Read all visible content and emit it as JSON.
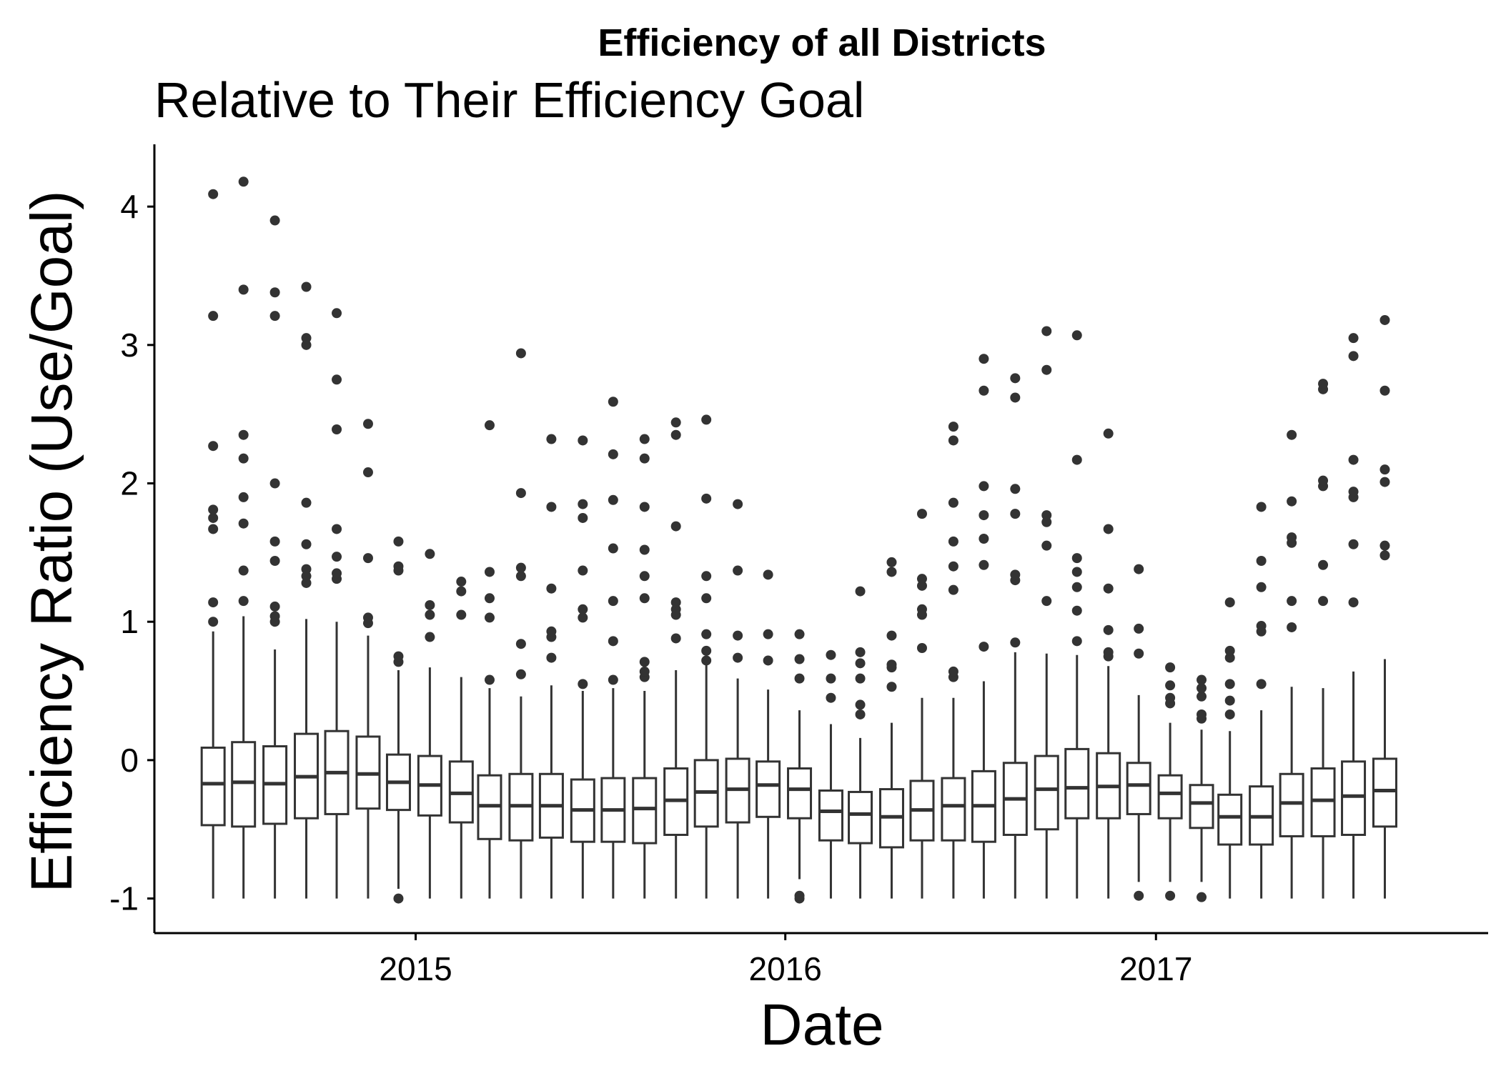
{
  "chart_data": {
    "type": "boxplot",
    "title": "Efficiency of all Districts",
    "subtitle": "Relative to Their Efficiency Goal",
    "xlabel": "Date",
    "ylabel": "Efficiency Ratio (Use/Goal)",
    "ylim": [
      -1.25,
      4.45
    ],
    "xlim": [
      "2014-04-18",
      "2017-11-25"
    ],
    "yticks": [
      -1,
      0,
      1,
      2,
      3,
      4
    ],
    "xticks": [
      {
        "date": "2015-01-01",
        "label": "2015"
      },
      {
        "date": "2016-01-01",
        "label": "2016"
      },
      {
        "date": "2017-01-01",
        "label": "2017"
      }
    ],
    "grid": false,
    "legend": "none",
    "colors": {
      "box_stroke": "#333333",
      "box_fill": "#ffffff",
      "outlier": "#333333",
      "axis": "#000000"
    },
    "boxes": [
      {
        "date": "2014-06-15",
        "min": -1.0,
        "q1": -0.47,
        "median": -0.17,
        "q3": 0.09,
        "max": 0.93,
        "outliers": [
          1.0,
          1.14,
          1.67,
          1.75,
          1.81,
          2.27,
          3.21,
          4.09
        ]
      },
      {
        "date": "2014-07-15",
        "min": -1.0,
        "q1": -0.48,
        "median": -0.16,
        "q3": 0.13,
        "max": 1.04,
        "outliers": [
          1.15,
          1.37,
          1.71,
          1.9,
          2.18,
          2.35,
          3.4,
          4.18
        ]
      },
      {
        "date": "2014-08-15",
        "min": -1.0,
        "q1": -0.46,
        "median": -0.17,
        "q3": 0.1,
        "max": 0.8,
        "outliers": [
          1.0,
          1.04,
          1.11,
          1.44,
          1.58,
          2.0,
          3.21,
          3.38,
          3.9
        ]
      },
      {
        "date": "2014-09-15",
        "min": -1.0,
        "q1": -0.42,
        "median": -0.12,
        "q3": 0.19,
        "max": 1.02,
        "outliers": [
          1.28,
          1.33,
          1.38,
          1.56,
          1.86,
          3.0,
          3.05,
          3.42
        ]
      },
      {
        "date": "2014-10-15",
        "min": -1.0,
        "q1": -0.39,
        "median": -0.09,
        "q3": 0.21,
        "max": 1.0,
        "outliers": [
          1.31,
          1.35,
          1.47,
          1.67,
          2.39,
          2.75,
          3.23
        ]
      },
      {
        "date": "2014-11-15",
        "min": -1.0,
        "q1": -0.35,
        "median": -0.1,
        "q3": 0.17,
        "max": 0.9,
        "outliers": [
          0.99,
          1.03,
          1.46,
          2.08,
          2.43
        ]
      },
      {
        "date": "2014-12-15",
        "min": -0.93,
        "q1": -0.36,
        "median": -0.16,
        "q3": 0.04,
        "max": 0.65,
        "outliers": [
          -1.0,
          0.71,
          0.75,
          1.37,
          1.4,
          1.58
        ]
      },
      {
        "date": "2015-01-15",
        "min": -1.0,
        "q1": -0.4,
        "median": -0.18,
        "q3": 0.03,
        "max": 0.67,
        "outliers": [
          0.89,
          1.05,
          1.12,
          1.49
        ]
      },
      {
        "date": "2015-02-15",
        "min": -1.0,
        "q1": -0.45,
        "median": -0.24,
        "q3": -0.01,
        "max": 0.6,
        "outliers": [
          1.05,
          1.22,
          1.29
        ]
      },
      {
        "date": "2015-03-15",
        "min": -1.0,
        "q1": -0.57,
        "median": -0.33,
        "q3": -0.11,
        "max": 0.52,
        "outliers": [
          0.58,
          1.03,
          1.17,
          1.36,
          2.42
        ]
      },
      {
        "date": "2015-04-15",
        "min": -1.0,
        "q1": -0.58,
        "median": -0.33,
        "q3": -0.1,
        "max": 0.46,
        "outliers": [
          0.62,
          0.84,
          1.33,
          1.39,
          1.93,
          2.94
        ]
      },
      {
        "date": "2015-05-15",
        "min": -1.0,
        "q1": -0.56,
        "median": -0.33,
        "q3": -0.1,
        "max": 0.54,
        "outliers": [
          0.74,
          0.89,
          0.93,
          1.24,
          1.83,
          2.32
        ]
      },
      {
        "date": "2015-06-15",
        "min": -1.0,
        "q1": -0.59,
        "median": -0.36,
        "q3": -0.14,
        "max": 0.5,
        "outliers": [
          0.55,
          1.03,
          1.09,
          1.37,
          1.75,
          1.85,
          2.31
        ]
      },
      {
        "date": "2015-07-15",
        "min": -1.0,
        "q1": -0.59,
        "median": -0.36,
        "q3": -0.13,
        "max": 0.52,
        "outliers": [
          0.58,
          0.86,
          1.15,
          1.53,
          1.88,
          2.21,
          2.59
        ]
      },
      {
        "date": "2015-08-15",
        "min": -1.0,
        "q1": -0.6,
        "median": -0.35,
        "q3": -0.13,
        "max": 0.5,
        "outliers": [
          0.6,
          0.64,
          0.71,
          1.17,
          1.33,
          1.52,
          1.83,
          2.18,
          2.32
        ]
      },
      {
        "date": "2015-09-15",
        "min": -1.0,
        "q1": -0.54,
        "median": -0.29,
        "q3": -0.06,
        "max": 0.65,
        "outliers": [
          0.88,
          1.05,
          1.09,
          1.14,
          1.69,
          2.35,
          2.44
        ]
      },
      {
        "date": "2015-10-15",
        "min": -1.0,
        "q1": -0.48,
        "median": -0.23,
        "q3": 0.0,
        "max": 0.7,
        "outliers": [
          0.72,
          0.79,
          0.91,
          1.17,
          1.33,
          1.89,
          2.46
        ]
      },
      {
        "date": "2015-11-15",
        "min": -1.0,
        "q1": -0.45,
        "median": -0.21,
        "q3": 0.01,
        "max": 0.59,
        "outliers": [
          0.74,
          0.9,
          1.37,
          1.85
        ]
      },
      {
        "date": "2015-12-15",
        "min": -1.0,
        "q1": -0.41,
        "median": -0.18,
        "q3": -0.01,
        "max": 0.51,
        "outliers": [
          0.72,
          0.91,
          1.34
        ]
      },
      {
        "date": "2016-01-15",
        "min": -0.86,
        "q1": -0.42,
        "median": -0.21,
        "q3": -0.06,
        "max": 0.36,
        "outliers": [
          -1.0,
          -0.98,
          0.59,
          0.73,
          0.91
        ]
      },
      {
        "date": "2016-02-15",
        "min": -1.0,
        "q1": -0.58,
        "median": -0.37,
        "q3": -0.22,
        "max": 0.26,
        "outliers": [
          0.45,
          0.59,
          0.76
        ]
      },
      {
        "date": "2016-03-15",
        "min": -1.0,
        "q1": -0.6,
        "median": -0.39,
        "q3": -0.23,
        "max": 0.16,
        "outliers": [
          0.33,
          0.4,
          0.59,
          0.7,
          0.78,
          1.22
        ]
      },
      {
        "date": "2016-04-15",
        "min": -1.0,
        "q1": -0.63,
        "median": -0.41,
        "q3": -0.21,
        "max": 0.27,
        "outliers": [
          0.53,
          0.67,
          0.69,
          0.9,
          1.36,
          1.43
        ]
      },
      {
        "date": "2016-05-15",
        "min": -1.0,
        "q1": -0.58,
        "median": -0.36,
        "q3": -0.15,
        "max": 0.45,
        "outliers": [
          0.81,
          1.05,
          1.09,
          1.26,
          1.31,
          1.78
        ]
      },
      {
        "date": "2016-06-15",
        "min": -1.0,
        "q1": -0.58,
        "median": -0.33,
        "q3": -0.13,
        "max": 0.45,
        "outliers": [
          0.6,
          0.64,
          1.23,
          1.4,
          1.58,
          1.86,
          2.31,
          2.41
        ]
      },
      {
        "date": "2016-07-15",
        "min": -1.0,
        "q1": -0.59,
        "median": -0.33,
        "q3": -0.08,
        "max": 0.57,
        "outliers": [
          0.82,
          1.41,
          1.6,
          1.77,
          1.98,
          2.67,
          2.9
        ]
      },
      {
        "date": "2016-08-15",
        "min": -1.0,
        "q1": -0.54,
        "median": -0.28,
        "q3": -0.02,
        "max": 0.78,
        "outliers": [
          0.85,
          1.3,
          1.34,
          1.78,
          1.96,
          2.62,
          2.76
        ]
      },
      {
        "date": "2016-09-15",
        "min": -1.0,
        "q1": -0.5,
        "median": -0.21,
        "q3": 0.03,
        "max": 0.77,
        "outliers": [
          1.15,
          1.55,
          1.72,
          1.77,
          2.82,
          3.1
        ]
      },
      {
        "date": "2016-10-15",
        "min": -1.0,
        "q1": -0.42,
        "median": -0.2,
        "q3": 0.08,
        "max": 0.76,
        "outliers": [
          0.86,
          1.08,
          1.25,
          1.36,
          1.46,
          2.17,
          3.07
        ]
      },
      {
        "date": "2016-11-15",
        "min": -1.0,
        "q1": -0.42,
        "median": -0.19,
        "q3": 0.05,
        "max": 0.68,
        "outliers": [
          0.75,
          0.78,
          0.94,
          1.24,
          1.67,
          2.36
        ]
      },
      {
        "date": "2016-12-15",
        "min": -0.88,
        "q1": -0.39,
        "median": -0.18,
        "q3": -0.02,
        "max": 0.47,
        "outliers": [
          -0.98,
          0.77,
          0.95,
          1.38
        ]
      },
      {
        "date": "2017-01-15",
        "min": -0.88,
        "q1": -0.42,
        "median": -0.24,
        "q3": -0.11,
        "max": 0.27,
        "outliers": [
          -0.98,
          0.41,
          0.45,
          0.54,
          0.67
        ]
      },
      {
        "date": "2017-02-15",
        "min": -0.88,
        "q1": -0.49,
        "median": -0.31,
        "q3": -0.18,
        "max": 0.22,
        "outliers": [
          -0.99,
          0.3,
          0.33,
          0.46,
          0.52,
          0.58
        ]
      },
      {
        "date": "2017-03-15",
        "min": -1.0,
        "q1": -0.61,
        "median": -0.41,
        "q3": -0.25,
        "max": 0.21,
        "outliers": [
          0.33,
          0.43,
          0.55,
          0.74,
          0.79,
          1.14
        ]
      },
      {
        "date": "2017-04-15",
        "min": -1.0,
        "q1": -0.61,
        "median": -0.41,
        "q3": -0.19,
        "max": 0.36,
        "outliers": [
          0.55,
          0.93,
          0.97,
          1.25,
          1.44,
          1.83
        ]
      },
      {
        "date": "2017-05-15",
        "min": -1.0,
        "q1": -0.55,
        "median": -0.31,
        "q3": -0.1,
        "max": 0.53,
        "outliers": [
          0.96,
          1.15,
          1.57,
          1.61,
          1.87,
          2.35
        ]
      },
      {
        "date": "2017-06-15",
        "min": -1.0,
        "q1": -0.55,
        "median": -0.29,
        "q3": -0.06,
        "max": 0.52,
        "outliers": [
          1.15,
          1.41,
          1.98,
          2.02,
          2.68,
          2.72
        ]
      },
      {
        "date": "2017-07-15",
        "min": -1.0,
        "q1": -0.54,
        "median": -0.26,
        "q3": -0.01,
        "max": 0.64,
        "outliers": [
          1.14,
          1.56,
          1.9,
          1.94,
          2.17,
          2.92,
          3.05
        ]
      },
      {
        "date": "2017-08-15",
        "min": -1.0,
        "q1": -0.48,
        "median": -0.22,
        "q3": 0.01,
        "max": 0.73,
        "outliers": [
          1.48,
          1.55,
          2.01,
          2.1,
          2.67,
          3.18
        ]
      }
    ]
  }
}
